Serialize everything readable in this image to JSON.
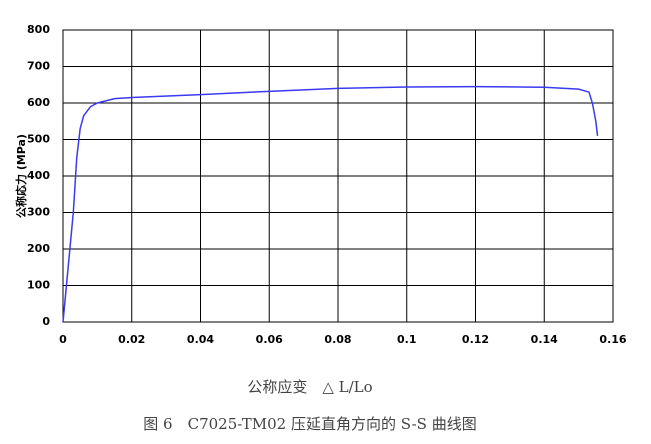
{
  "chart_data": {
    "type": "line",
    "x_label": "公称应变　△ L/Lo",
    "y_label": "公称応力 (MPa)",
    "caption": "图 6　C7025-TM02 压延直角方向的 S-S 曲线图",
    "x": [
      0,
      0.001,
      0.002,
      0.003,
      0.004,
      0.005,
      0.006,
      0.008,
      0.01,
      0.015,
      0.02,
      0.04,
      0.06,
      0.08,
      0.1,
      0.12,
      0.14,
      0.15,
      0.153,
      0.154,
      0.155,
      0.1555
    ],
    "values": [
      0,
      100,
      200,
      300,
      450,
      530,
      565,
      590,
      600,
      612,
      615,
      623,
      632,
      640,
      644,
      645,
      643,
      638,
      630,
      600,
      550,
      510
    ],
    "color": "#3a3af0",
    "xlim": [
      0,
      0.16
    ],
    "xticks": [
      0,
      0.02,
      0.04,
      0.06,
      0.08,
      0.1,
      0.12,
      0.14,
      0.16
    ],
    "ylim": [
      0,
      800
    ],
    "yticks": [
      0,
      100,
      200,
      300,
      400,
      500,
      600,
      700,
      800
    ],
    "grid": true
  }
}
